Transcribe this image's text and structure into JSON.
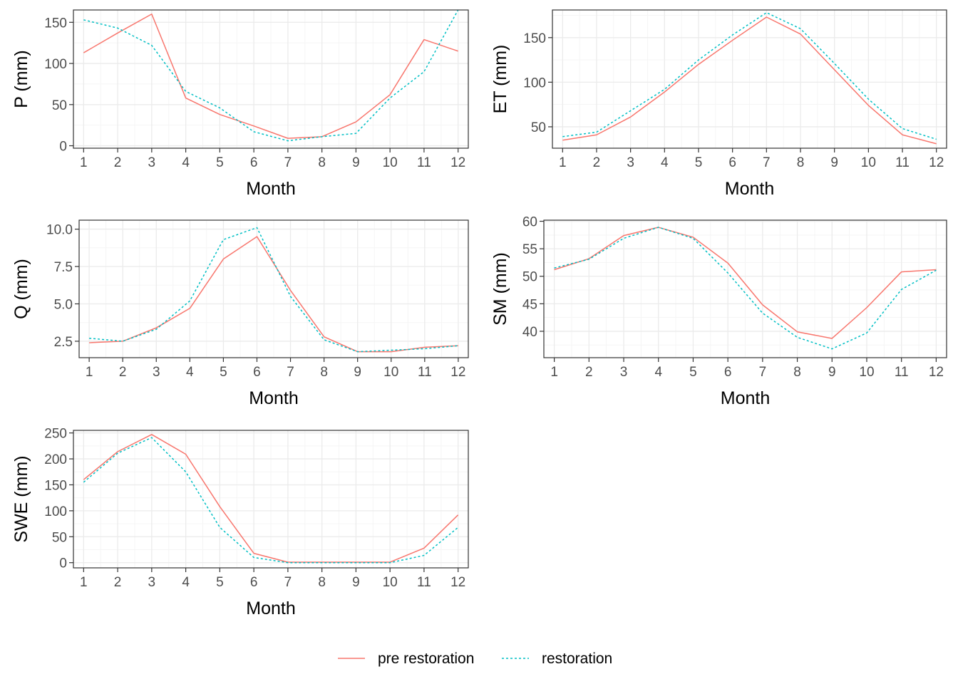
{
  "chart_data": [
    {
      "type": "line",
      "xlabel": "Month",
      "ylabel": "P (mm)",
      "x": [
        1,
        2,
        3,
        4,
        5,
        6,
        7,
        8,
        9,
        10,
        11,
        12
      ],
      "xlim": [
        0.7,
        12.3
      ],
      "ylim": [
        -3,
        165
      ],
      "yticks": [
        0,
        50,
        100,
        150
      ],
      "ytick_labels": [
        "0",
        "50",
        "100",
        "150"
      ],
      "grid": true,
      "series": [
        {
          "name": "pre restoration",
          "values": [
            113,
            137,
            160,
            58,
            38,
            24,
            9,
            11,
            29,
            62,
            129,
            115
          ]
        },
        {
          "name": "restoration",
          "values": [
            153,
            143,
            122,
            66,
            46,
            17,
            6,
            11,
            15,
            58,
            90,
            165
          ]
        }
      ]
    },
    {
      "type": "line",
      "xlabel": "Month",
      "ylabel": "ET (mm)",
      "x": [
        1,
        2,
        3,
        4,
        5,
        6,
        7,
        8,
        9,
        10,
        11,
        12
      ],
      "xlim": [
        0.7,
        12.3
      ],
      "ylim": [
        26,
        181
      ],
      "yticks": [
        50,
        100,
        150
      ],
      "ytick_labels": [
        "50",
        "100",
        "150"
      ],
      "grid": true,
      "series": [
        {
          "name": "pre restoration",
          "values": [
            35,
            41,
            61,
            89,
            120,
            147,
            173,
            154,
            114,
            74,
            41,
            31
          ]
        },
        {
          "name": "restoration",
          "values": [
            39,
            44,
            68,
            92,
            125,
            153,
            178,
            160,
            121,
            81,
            48,
            36
          ]
        }
      ]
    },
    {
      "type": "line",
      "xlabel": "Month",
      "ylabel": "Q (mm)",
      "x": [
        1,
        2,
        3,
        4,
        5,
        6,
        7,
        8,
        9,
        10,
        11,
        12
      ],
      "xlim": [
        0.7,
        12.3
      ],
      "ylim": [
        1.4,
        10.6
      ],
      "yticks": [
        2.5,
        5.0,
        7.5,
        10.0
      ],
      "ytick_labels": [
        "2.5",
        "5.0",
        "7.5",
        "10.0"
      ],
      "grid": true,
      "series": [
        {
          "name": "pre restoration",
          "values": [
            2.4,
            2.5,
            3.4,
            4.7,
            8.0,
            9.5,
            5.9,
            2.8,
            1.8,
            1.8,
            2.1,
            2.2
          ]
        },
        {
          "name": "restoration",
          "values": [
            2.7,
            2.5,
            3.3,
            5.2,
            9.3,
            10.1,
            5.5,
            2.6,
            1.8,
            1.9,
            2.0,
            2.2
          ]
        }
      ]
    },
    {
      "type": "line",
      "xlabel": "Month",
      "ylabel": "SM (mm)",
      "x": [
        1,
        2,
        3,
        4,
        5,
        6,
        7,
        8,
        9,
        10,
        11,
        12
      ],
      "xlim": [
        0.7,
        12.3
      ],
      "ylim": [
        35.2,
        60.2
      ],
      "yticks": [
        40,
        45,
        50,
        55,
        60
      ],
      "ytick_labels": [
        "40",
        "45",
        "50",
        "55",
        "60"
      ],
      "grid": true,
      "series": [
        {
          "name": "pre restoration",
          "values": [
            51.2,
            53.2,
            57.4,
            58.9,
            57.1,
            52.4,
            44.8,
            39.9,
            38.7,
            44.3,
            50.8,
            51.2
          ]
        },
        {
          "name": "restoration",
          "values": [
            51.5,
            53.1,
            56.9,
            58.9,
            56.9,
            50.6,
            43.3,
            38.9,
            36.8,
            39.7,
            47.6,
            51.1
          ]
        }
      ]
    },
    {
      "type": "line",
      "xlabel": "Month",
      "ylabel": "SWE (mm)",
      "x": [
        1,
        2,
        3,
        4,
        5,
        6,
        7,
        8,
        9,
        10,
        11,
        12
      ],
      "xlim": [
        0.7,
        12.3
      ],
      "ylim": [
        -10,
        255
      ],
      "yticks": [
        0,
        50,
        100,
        150,
        200,
        250
      ],
      "ytick_labels": [
        "0",
        "50",
        "100",
        "150",
        "200",
        "250"
      ],
      "grid": true,
      "series": [
        {
          "name": "pre restoration",
          "values": [
            160,
            214,
            247,
            209,
            108,
            18,
            1,
            1,
            1,
            1,
            28,
            92
          ]
        },
        {
          "name": "restoration",
          "values": [
            155,
            211,
            241,
            175,
            68,
            10,
            0,
            0,
            0,
            0,
            14,
            68
          ]
        }
      ]
    }
  ],
  "legend": {
    "position": "bottom",
    "entries": [
      {
        "label": "pre restoration",
        "color": "#F8766D",
        "dash": "solid"
      },
      {
        "label": "restoration",
        "color": "#00BFC4",
        "dash": "dotted"
      }
    ]
  },
  "colors": {
    "pre_restoration": "#F8766D",
    "restoration": "#00BFC4",
    "grid_major": "#ebebeb",
    "grid_minor": "#f5f5f5",
    "panel_border": "#333333"
  }
}
